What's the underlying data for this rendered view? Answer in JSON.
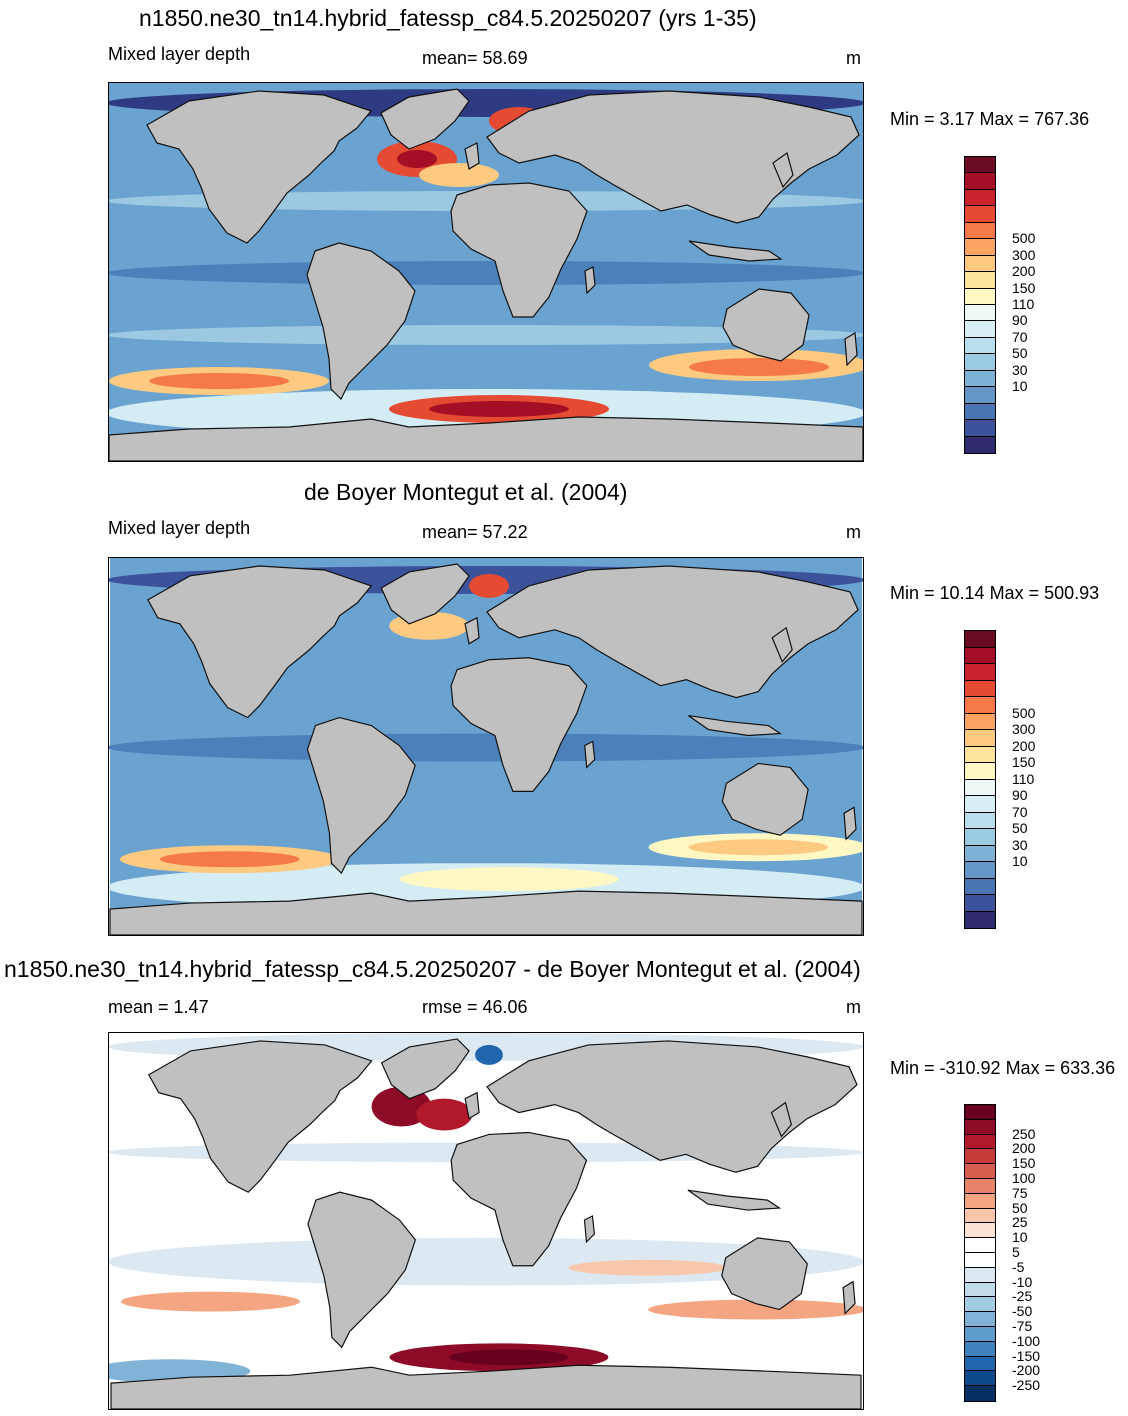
{
  "panels": [
    {
      "title": "n1850.ne30_tn14.hybrid_fatessp_c84.5.20250207 (yrs 1-35)",
      "left_label": "Mixed layer depth",
      "center_label": "mean=  58.69",
      "units": "m",
      "minmax": "Min =   3.17 Max = 767.36",
      "field": "model",
      "colorbar": "mld"
    },
    {
      "title": "de Boyer Montegut et al. (2004)",
      "left_label": "Mixed layer depth",
      "center_label": "mean=  57.22",
      "units": "m",
      "minmax": "Min =  10.14 Max = 500.93",
      "field": "obs",
      "colorbar": "mld"
    },
    {
      "title": "n1850.ne30_tn14.hybrid_fatessp_c84.5.20250207 - de Boyer Montegut et al. (2004)",
      "left_label": "mean =   1.47",
      "center_label": "rmse =  46.06",
      "units": "m",
      "minmax": "Min = -310.92 Max = 633.36",
      "field": "diff",
      "colorbar": "diff"
    }
  ],
  "colorbars": {
    "mld": {
      "labels": [
        "500",
        "300",
        "200",
        "150",
        "110",
        "90",
        "70",
        "50",
        "30",
        "10"
      ],
      "colors": [
        "#6b0a23",
        "#a50f26",
        "#c9232e",
        "#e54a33",
        "#f67a48",
        "#fca462",
        "#fec980",
        "#ffe49b",
        "#fff8c4",
        "#eef8f6",
        "#d7eef5",
        "#b9dfee",
        "#9bcbe2",
        "#7fb3d6",
        "#6497c6",
        "#4a76b3",
        "#3c539b",
        "#2e2a6b"
      ]
    },
    "diff": {
      "labels": [
        "250",
        "200",
        "150",
        "100",
        "75",
        "50",
        "25",
        "10",
        "5",
        "-5",
        "-10",
        "-25",
        "-50",
        "-75",
        "-100",
        "-150",
        "-200",
        "-250"
      ],
      "colors": [
        "#67001f",
        "#8e0b27",
        "#b2182b",
        "#c73a3a",
        "#d6604d",
        "#e58468",
        "#f4a582",
        "#f8c7ab",
        "#fde3d5",
        "#ffffff",
        "#ffffff",
        "#dde9f2",
        "#c2dbea",
        "#a2cbe2",
        "#80b3d6",
        "#5d9dcb",
        "#3f83bc",
        "#2166ac",
        "#0c4a8c",
        "#053061"
      ]
    }
  },
  "colors": {
    "land": "#c0c0c0",
    "coast": "#111111"
  }
}
